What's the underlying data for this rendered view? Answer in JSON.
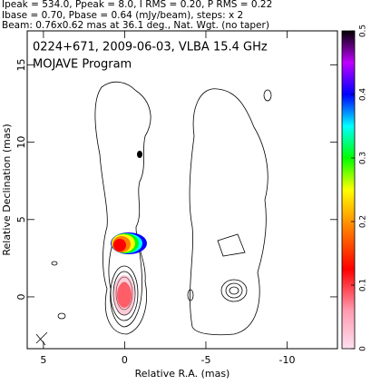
{
  "chart_data": {
    "type": "contour",
    "header": [
      "Ipeak = 534.0, Ppeak = 8.0, I RMS = 0.20, P RMS = 0.22",
      "Ibase = 0.70, Pbase = 0.64 (mJy/beam), steps: x 2",
      "Beam: 0.76x0.62 mas at 36.1 deg., Nat. Wgt. (no taper)"
    ],
    "title": "0224+671, 2009-06-03, VLBA 15.4 GHz",
    "subtitle": "MOJAVE Program",
    "xlabel": "Relative R.A. (mas)",
    "ylabel": "Relative Declination (mas)",
    "xlim": [
      6,
      -13.1
    ],
    "xticks": [
      5,
      0,
      -5,
      -10
    ],
    "ylim": [
      -3.35,
      17.2
    ],
    "yticks": [
      0,
      5,
      10,
      15
    ],
    "zlim": [
      0,
      0.5
    ],
    "zticks": [
      0,
      0.1,
      0.2,
      0.3,
      0.4,
      0.5
    ]
  }
}
